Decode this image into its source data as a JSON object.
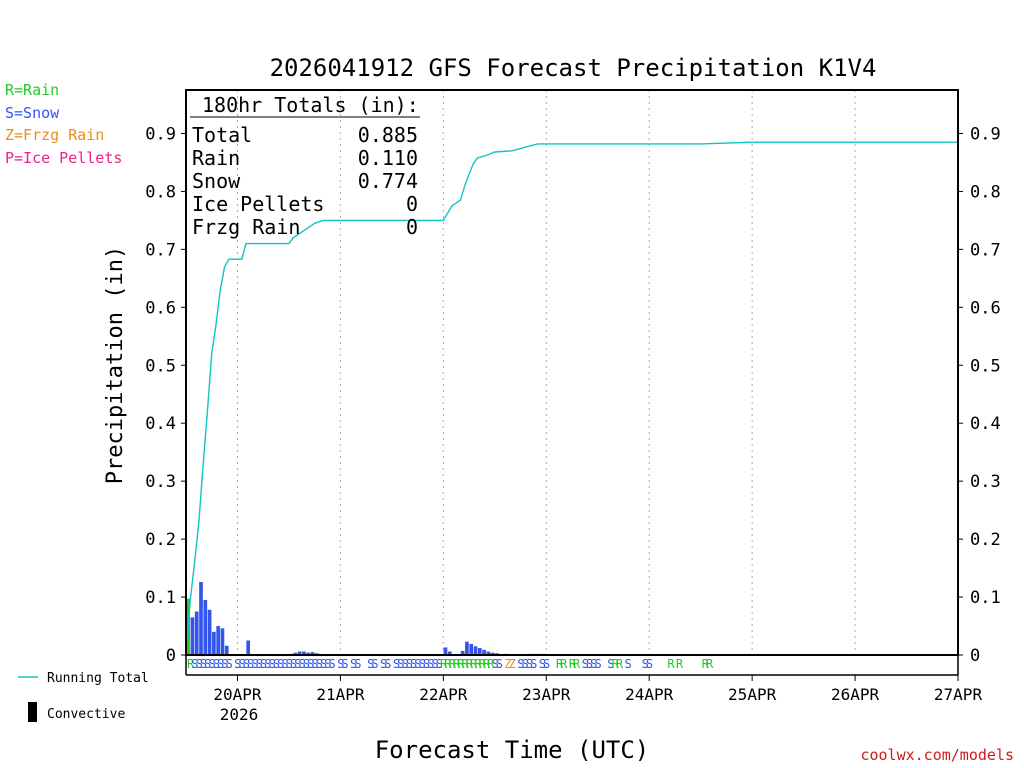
{
  "chart_data": {
    "type": "bar",
    "title": "2026041912 GFS Forecast Precipitation K1V4",
    "xlabel": "Forecast Time (UTC)",
    "ylabel": "Precipitation (in)",
    "ylim": [
      0,
      0.975
    ],
    "yticks": [
      "0",
      "0.1",
      "0.2",
      "0.3",
      "0.4",
      "0.5",
      "0.6",
      "0.7",
      "0.8",
      "0.9"
    ],
    "xlim_hours": [
      0,
      180
    ],
    "xtick_labels": [
      "20APR",
      "21APR",
      "22APR",
      "23APR",
      "24APR",
      "25APR",
      "26APR",
      "27APR"
    ],
    "xtick_hours": [
      12,
      36,
      60,
      84,
      108,
      132,
      156,
      180
    ],
    "year_label": "2026",
    "legend_types": [
      {
        "label": "R=Rain",
        "color": "#22cc22"
      },
      {
        "label": "S=Snow",
        "color": "#3355ee"
      },
      {
        "label": "Z=Frzg Rain",
        "color": "#f08a1c"
      },
      {
        "label": "P=Ice Pellets",
        "color": "#ee1f8c"
      }
    ],
    "legend_series": [
      {
        "label": "Running Total",
        "color": "#11c4c4"
      },
      {
        "label": "Convective",
        "color": "#000000"
      }
    ],
    "totals": {
      "header": "180hr Totals (in):",
      "rows": [
        {
          "label": "Total",
          "value": "0.885"
        },
        {
          "label": "Rain",
          "value": "0.110"
        },
        {
          "label": "Snow",
          "value": "0.774"
        },
        {
          "label": "Ice Pellets",
          "value": "0"
        },
        {
          "label": "Frzg Rain",
          "value": "0"
        }
      ]
    },
    "bars": [
      {
        "t": 0,
        "v": 0.097,
        "type": "R"
      },
      {
        "t": 1,
        "v": 0.065,
        "type": "S"
      },
      {
        "t": 2,
        "v": 0.075,
        "type": "S"
      },
      {
        "t": 3,
        "v": 0.126,
        "type": "S"
      },
      {
        "t": 4,
        "v": 0.095,
        "type": "S"
      },
      {
        "t": 5,
        "v": 0.078,
        "type": "S"
      },
      {
        "t": 6,
        "v": 0.04,
        "type": "S"
      },
      {
        "t": 7,
        "v": 0.05,
        "type": "S"
      },
      {
        "t": 8,
        "v": 0.046,
        "type": "S"
      },
      {
        "t": 9,
        "v": 0.016,
        "type": "S"
      },
      {
        "t": 14,
        "v": 0.025,
        "type": "S"
      },
      {
        "t": 24,
        "v": 0.002,
        "type": "S"
      },
      {
        "t": 25,
        "v": 0.004,
        "type": "S"
      },
      {
        "t": 26,
        "v": 0.006,
        "type": "S"
      },
      {
        "t": 27,
        "v": 0.006,
        "type": "S"
      },
      {
        "t": 28,
        "v": 0.004,
        "type": "S"
      },
      {
        "t": 29,
        "v": 0.005,
        "type": "S"
      },
      {
        "t": 30,
        "v": 0.003,
        "type": "S"
      },
      {
        "t": 31,
        "v": 0.001,
        "type": "S"
      },
      {
        "t": 60,
        "v": 0.013,
        "type": "S"
      },
      {
        "t": 61,
        "v": 0.006,
        "type": "S"
      },
      {
        "t": 64,
        "v": 0.007,
        "type": "S"
      },
      {
        "t": 65,
        "v": 0.023,
        "type": "S"
      },
      {
        "t": 66,
        "v": 0.019,
        "type": "S"
      },
      {
        "t": 67,
        "v": 0.015,
        "type": "S"
      },
      {
        "t": 68,
        "v": 0.012,
        "type": "S"
      },
      {
        "t": 69,
        "v": 0.009,
        "type": "S"
      },
      {
        "t": 70,
        "v": 0.006,
        "type": "S"
      },
      {
        "t": 71,
        "v": 0.004,
        "type": "S"
      },
      {
        "t": 72,
        "v": 0.003,
        "type": "S"
      },
      {
        "t": 74,
        "v": 0.002,
        "type": "S"
      },
      {
        "t": 80,
        "v": 0.002,
        "type": "R"
      },
      {
        "t": 81,
        "v": 0.002,
        "type": "R"
      },
      {
        "t": 82,
        "v": 0.002,
        "type": "R"
      },
      {
        "t": 83,
        "v": 0.002,
        "type": "R"
      }
    ],
    "running_total": [
      [
        0,
        0.0
      ],
      [
        1,
        0.095
      ],
      [
        2,
        0.16
      ],
      [
        3,
        0.23
      ],
      [
        4,
        0.33
      ],
      [
        5,
        0.42
      ],
      [
        6,
        0.52
      ],
      [
        7,
        0.57
      ],
      [
        8,
        0.63
      ],
      [
        9,
        0.67
      ],
      [
        10,
        0.683
      ],
      [
        13,
        0.683
      ],
      [
        14,
        0.71
      ],
      [
        24,
        0.71
      ],
      [
        25,
        0.72
      ],
      [
        28,
        0.735
      ],
      [
        30,
        0.745
      ],
      [
        32,
        0.75
      ],
      [
        60,
        0.75
      ],
      [
        62,
        0.775
      ],
      [
        64,
        0.785
      ],
      [
        65,
        0.81
      ],
      [
        66,
        0.83
      ],
      [
        67,
        0.848
      ],
      [
        68,
        0.858
      ],
      [
        70,
        0.862
      ],
      [
        72,
        0.868
      ],
      [
        76,
        0.87
      ],
      [
        80,
        0.878
      ],
      [
        82,
        0.882
      ],
      [
        96,
        0.882
      ],
      [
        120,
        0.882
      ],
      [
        132,
        0.885
      ],
      [
        180,
        0.885
      ]
    ],
    "type_strip": "RSSSSSSSSS SSSSSSSSSSSSSSSSSSSSSSS SS SS  SS SS SSSSSSSSSSSRRRRRRRRRRRRSS ZZ SSSS SS  RR RR SSSS  SRR S   SS    R R     RR"
  },
  "footer": "coolwx.com/models"
}
